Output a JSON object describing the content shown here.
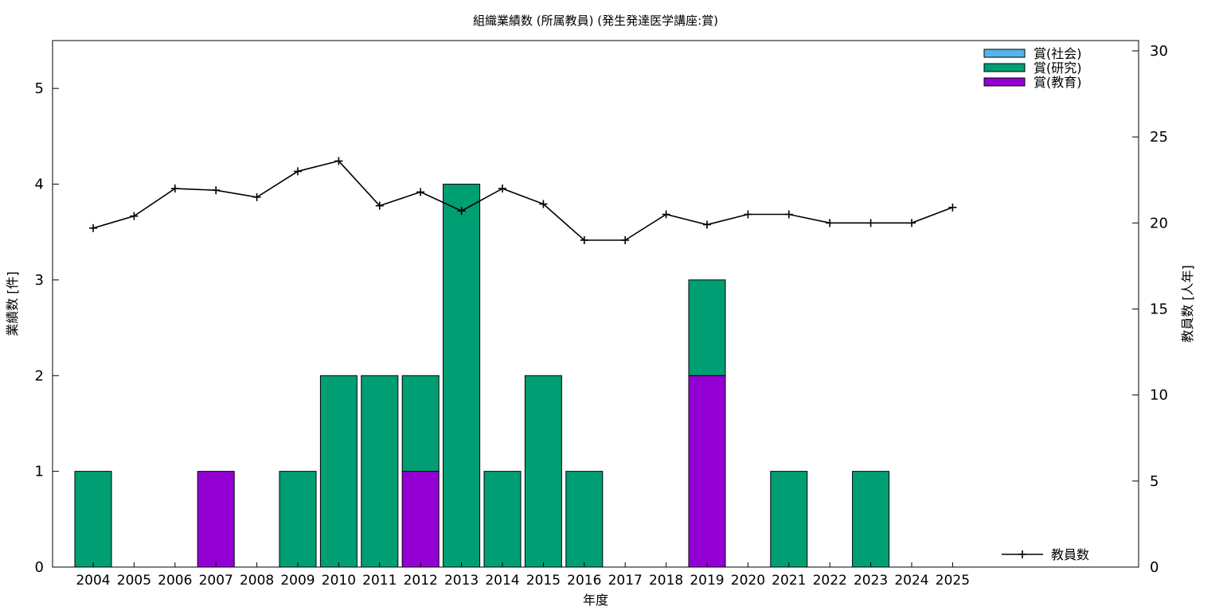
{
  "chart_data": {
    "type": "bar",
    "title": "組織業績数 (所属教員) (発生発達医学講座:賞)",
    "xlabel": "年度",
    "ylabel": "業績数 [件]",
    "y2label": "教員数 [人年]",
    "ylim": [
      0,
      5.5
    ],
    "y2lim": [
      0,
      30.6
    ],
    "yticks": [
      0,
      1,
      2,
      3,
      4,
      5
    ],
    "y2ticks": [
      0,
      5,
      10,
      15,
      20,
      25,
      30
    ],
    "categories": [
      "2004",
      "2005",
      "2006",
      "2007",
      "2008",
      "2009",
      "2010",
      "2011",
      "2012",
      "2013",
      "2014",
      "2015",
      "2016",
      "2017",
      "2018",
      "2019",
      "2020",
      "2021",
      "2022",
      "2023",
      "2024",
      "2025"
    ],
    "stacked": true,
    "series": [
      {
        "name": "賞(教育)",
        "color": "#9400d3",
        "values": [
          0,
          0,
          0,
          1,
          0,
          0,
          0,
          0,
          1,
          0,
          0,
          0,
          0,
          0,
          0,
          2,
          0,
          0,
          0,
          0,
          0,
          0
        ]
      },
      {
        "name": "賞(研究)",
        "color": "#009e73",
        "values": [
          1,
          0,
          0,
          0,
          0,
          1,
          2,
          2,
          1,
          4,
          1,
          2,
          1,
          0,
          0,
          1,
          0,
          1,
          0,
          1,
          0,
          0
        ]
      },
      {
        "name": "賞(社会)",
        "color": "#56b4e9",
        "values": [
          0,
          0,
          0,
          0,
          0,
          0,
          0,
          0,
          0,
          0,
          0,
          0,
          0,
          0,
          0,
          0,
          0,
          0,
          0,
          0,
          0,
          0
        ]
      }
    ],
    "line_series": {
      "name": "教員数",
      "color": "#000000",
      "axis": "y2",
      "values": [
        19.7,
        20.4,
        22.0,
        21.9,
        21.5,
        23.0,
        23.6,
        21.0,
        21.8,
        20.7,
        22.0,
        21.1,
        19.0,
        19.0,
        20.5,
        19.9,
        20.5,
        20.5,
        20.0,
        20.0,
        20.0,
        20.9
      ]
    },
    "legend_order": [
      "賞(社会)",
      "賞(研究)",
      "賞(教育)"
    ],
    "legend_position": "top-right",
    "line_legend_position": "bottom-right",
    "grid": false
  }
}
